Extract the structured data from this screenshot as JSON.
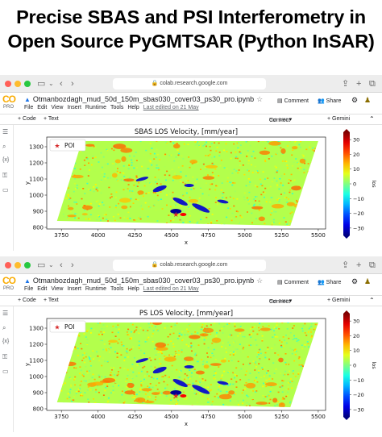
{
  "headline": {
    "line1": "Precise SBAS and PSI Interferometry in",
    "line2": "Open Source PyGMTSAR (Python InSAR)"
  },
  "colors": {
    "accent": "#f9ab00",
    "link": "#1a73e8",
    "poi": "#d62728"
  },
  "windows": [
    {
      "url": "colab.research.google.com",
      "notebook_name": "Otmanbozdagh_mud_50d_150m_sbas030_cover03_ps30_pro.ipynb",
      "logo_text": "CO",
      "logo_badge": "PRO",
      "menus": [
        "File",
        "Edit",
        "View",
        "Insert",
        "Runtime",
        "Tools",
        "Help"
      ],
      "last_edited": "Last edited on 21 May",
      "comment_label": "Comment",
      "share_label": "Share",
      "add_code": "+ Code",
      "add_text": "+ Text",
      "connect_label": "Connect",
      "runtime_label": "High RAM",
      "gemini_label": "+ Gemini",
      "chart_data": {
        "type": "heatmap",
        "title": "SBAS LOS Velocity, [mm/year]",
        "xlabel": "x",
        "ylabel": "y",
        "xlim": [
          3650,
          5550
        ],
        "ylim": [
          790,
          1360
        ],
        "xticks": [
          "3750",
          "4000",
          "4250",
          "4500",
          "4750",
          "5000",
          "5250",
          "5500"
        ],
        "yticks": [
          "800",
          "900",
          "1000",
          "1100",
          "1200",
          "1300"
        ],
        "legend": "POI",
        "legend_placement": "top-left",
        "colorbar_label": "los",
        "colorbar_ticks": [
          "30",
          "20",
          "10",
          "0",
          "−10",
          "−20",
          "−30"
        ],
        "colorbar_range": [
          -35,
          35
        ],
        "poi": [
          4530,
          880
        ]
      }
    },
    {
      "url": "colab.research.google.com",
      "notebook_name": "Otmanbozdagh_mud_50d_150m_sbas030_cover03_ps30_pro.ipynb",
      "logo_text": "CO",
      "logo_badge": "PRO",
      "menus": [
        "File",
        "Edit",
        "View",
        "Insert",
        "Runtime",
        "Tools",
        "Help"
      ],
      "last_edited": "Last edited on 21 May",
      "comment_label": "Comment",
      "share_label": "Share",
      "add_code": "+ Code",
      "add_text": "+ Text",
      "connect_label": "Connect",
      "runtime_label": "High RAM",
      "gemini_label": "+ Gemini",
      "chart_data": {
        "type": "heatmap",
        "title": "PS LOS Velocity, [mm/year]",
        "xlabel": "x",
        "ylabel": "y",
        "xlim": [
          3650,
          5550
        ],
        "ylim": [
          790,
          1360
        ],
        "xticks": [
          "3750",
          "4000",
          "4250",
          "4500",
          "4750",
          "5000",
          "5250",
          "5500"
        ],
        "yticks": [
          "800",
          "900",
          "1000",
          "1100",
          "1200",
          "1300"
        ],
        "legend": "POI",
        "legend_placement": "top-left",
        "colorbar_label": "los",
        "colorbar_ticks": [
          "30",
          "20",
          "10",
          "0",
          "−10",
          "−20",
          "−30"
        ],
        "colorbar_range": [
          -35,
          35
        ],
        "poi": [
          4530,
          880
        ]
      }
    }
  ]
}
